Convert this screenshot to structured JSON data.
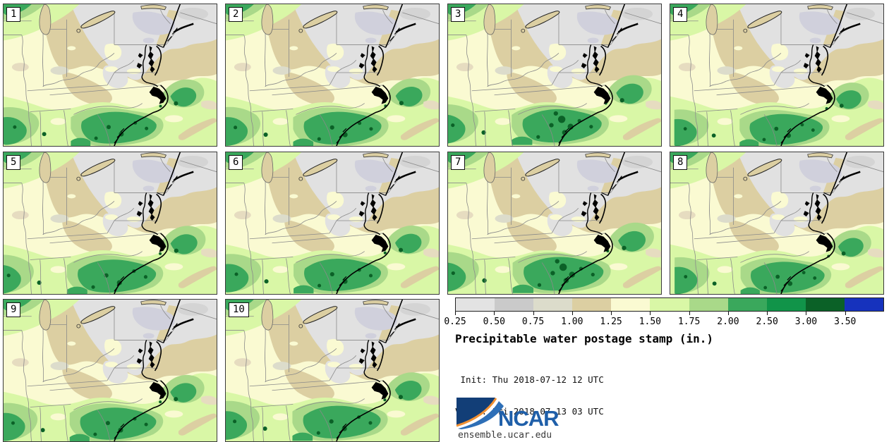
{
  "figure": {
    "title": "Precipitable water postage stamp (in.)",
    "init_line": " Init: Thu 2018-07-12 12 UTC",
    "valid_line": "Valid: Fri 2018-07-13 03 UTC"
  },
  "panels": [
    {
      "label": "1"
    },
    {
      "label": "2"
    },
    {
      "label": "3"
    },
    {
      "label": "4"
    },
    {
      "label": "5"
    },
    {
      "label": "6"
    },
    {
      "label": "7"
    },
    {
      "label": "8"
    },
    {
      "label": "9"
    },
    {
      "label": "10"
    }
  ],
  "colorbar": {
    "tick_labels": [
      "0.25",
      "0.50",
      "0.75",
      "1.00",
      "1.25",
      "1.50",
      "1.75",
      "2.00",
      "2.50",
      "3.00",
      "3.50"
    ],
    "segment_colors": [
      "#e3e3e3",
      "#cacaca",
      "#dcdccb",
      "#dccfa2",
      "#fafad2",
      "#d9f7a6",
      "#a9d989",
      "#3aa85c",
      "#119449",
      "#0b6127",
      "#1632bd"
    ]
  },
  "map_palette": {
    "gray_light": "#e1e1e1",
    "gray_mid": "#cacaca",
    "gray_lavender": "#d0d0dc",
    "sage": "#dcdccb",
    "tan": "#dccfa2",
    "tan_light": "#e6dcc0",
    "pale_yellow": "#fafad2",
    "yellow_green": "#d9f7a6",
    "light_green": "#a9d989",
    "mid_green": "#3aa85c",
    "green": "#119449",
    "dark_green": "#0b6127",
    "blue_over": "#1632bd",
    "state_border": "#8a8a8a",
    "coast": "#000000"
  },
  "logo": {
    "text": "NCAR",
    "caption": "ensemble.ucar.edu",
    "blue_dark": "#123e77",
    "blue_mid": "#2e6fb7",
    "blue_text": "#1f5fa9",
    "orange": "#f09033"
  }
}
